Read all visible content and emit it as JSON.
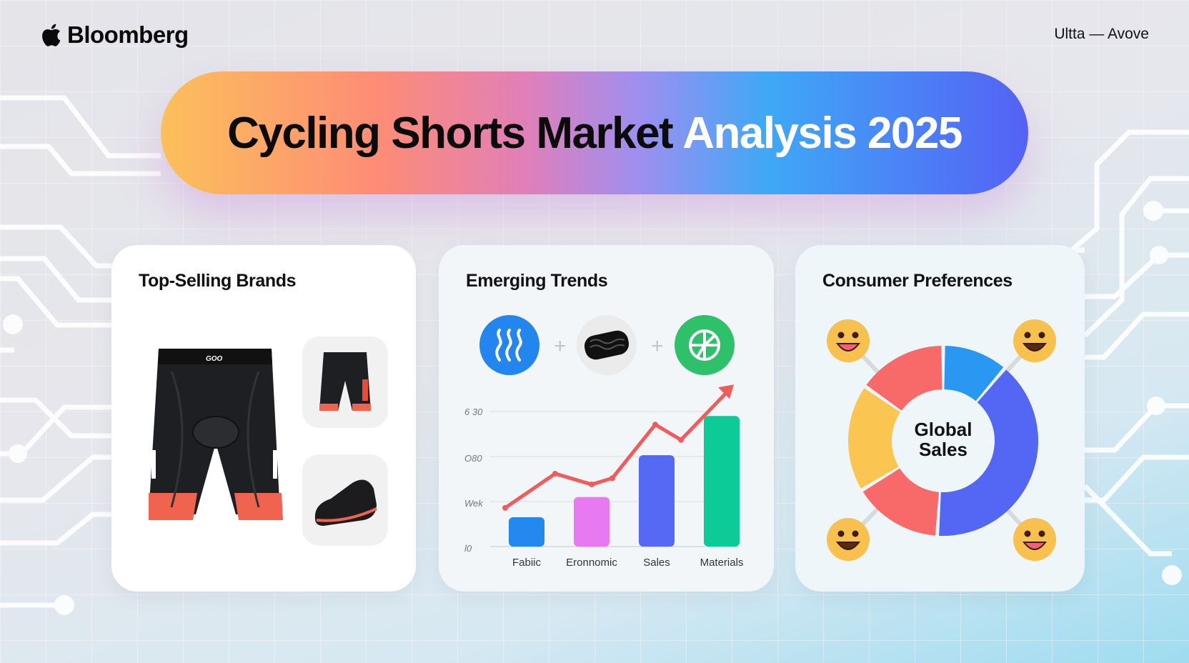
{
  "header": {
    "brand": "Bloomberg",
    "brand_icon": "apple-icon",
    "top_right": "Ultta — Avove"
  },
  "title": {
    "dark": "Cycling Shorts Market",
    "light": "Analysis 2025"
  },
  "cards": {
    "brands": {
      "title": "Top-Selling Brands",
      "shorts_logo": "GOO"
    },
    "trends": {
      "title": "Emerging Trends",
      "icons": [
        "heat-waves-icon",
        "tread-pad-icon",
        "wheel-icon"
      ]
    },
    "preferences": {
      "title": "Consumer Preferences",
      "center_line1": "Global",
      "center_line2": "Sales"
    }
  },
  "chart_data": [
    {
      "type": "bar",
      "categories": [
        "Fabiic",
        "Eronnomic",
        "Sales",
        "Materials"
      ],
      "values": [
        0.65,
        1.1,
        2.03,
        2.9
      ],
      "y_tick_labels": [
        "l0",
        "Wek",
        "O80",
        "6 30"
      ],
      "ylim": [
        0,
        3
      ],
      "grid": true,
      "bar_colors": [
        "#2389ee",
        "#e77af0",
        "#5669f4",
        "#0dcb97"
      ],
      "trend_line": {
        "color": "#f25b5b",
        "values": [
          0.86,
          1.62,
          1.38,
          1.52,
          2.71,
          2.37,
          3.6
        ],
        "arrow": true
      }
    },
    {
      "type": "pie",
      "donut": true,
      "values": [
        11,
        39,
        15,
        18,
        15
      ],
      "colors": [
        "#2a97f3",
        "#5366f4",
        "#f86a6a",
        "#fbc552",
        "#f86a6a"
      ]
    }
  ],
  "colors": {
    "pill_start": "#fcc05a",
    "pill_end": "#5561f5",
    "emoji": "#f8c04e"
  },
  "emojis": [
    "grinning-face-icon",
    "smiling-face-open-mouth-icon",
    "smiling-face-icon",
    "laughing-face-icon"
  ]
}
